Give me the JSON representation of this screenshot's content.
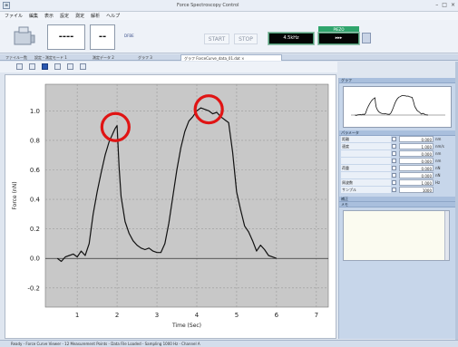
{
  "window": {
    "title": "Force Spectroscopy Control",
    "controls": [
      "–",
      "□",
      "×"
    ]
  },
  "menu": [
    "ファイル",
    "編集",
    "表示",
    "設定",
    "測定",
    "解析",
    "ヘルプ"
  ],
  "toolbar": {
    "field1": "----",
    "field2": "--",
    "small_label": "DFBE",
    "start_label": "START",
    "stop_label": "STOP",
    "dark1_label": "4.5kHz",
    "dark2_label": "▸▸▸",
    "green_label": "PIEZO"
  },
  "tabs": [
    {
      "label": "ファイル一覧"
    },
    {
      "label": "設定・測定モード 1"
    },
    {
      "label": "測定データ 2"
    },
    {
      "label": "グラフ 3"
    },
    {
      "label": "グラフ ForceCurve_data_01.dat ×"
    }
  ],
  "chart_data": {
    "type": "line",
    "title": "",
    "xlabel": "Time (Sec)",
    "ylabel": "Force (nN)",
    "xlim": [
      0.2,
      7.3
    ],
    "ylim": [
      -0.33,
      1.18
    ],
    "xticks": [
      1,
      2,
      3,
      4,
      5,
      6,
      7
    ],
    "yticks": [
      -0.2,
      0.0,
      0.2,
      0.4,
      0.6,
      0.8,
      1.0
    ],
    "xtick_labels": [
      "1",
      "2",
      "3",
      "4",
      "5",
      "6",
      "7"
    ],
    "ytick_labels": [
      "-0.2",
      "0.0",
      "0.2",
      "0.4",
      "0.6",
      "0.8",
      "1.0"
    ],
    "grid": true,
    "series": [
      {
        "x": [
          0.5,
          0.6,
          0.7,
          0.8,
          0.9,
          1.0,
          1.1,
          1.2,
          1.3,
          1.4,
          1.5,
          1.6,
          1.7,
          1.8,
          1.9,
          1.95,
          2.0,
          2.05,
          2.1,
          2.2,
          2.3,
          2.4,
          2.5,
          2.6,
          2.7,
          2.8,
          2.9,
          3.0,
          3.1,
          3.2,
          3.3,
          3.4,
          3.5,
          3.6,
          3.7,
          3.8,
          3.9,
          4.0,
          4.1,
          4.2,
          4.3,
          4.4,
          4.5,
          4.6,
          4.7,
          4.8,
          4.9,
          5.0,
          5.1,
          5.2,
          5.3,
          5.4,
          5.5,
          5.6,
          5.7,
          5.8,
          5.9,
          6.0
        ],
        "y": [
          0.0,
          -0.02,
          0.01,
          0.02,
          0.03,
          0.01,
          0.05,
          0.02,
          0.1,
          0.3,
          0.45,
          0.58,
          0.7,
          0.79,
          0.85,
          0.88,
          0.9,
          0.62,
          0.42,
          0.25,
          0.17,
          0.12,
          0.09,
          0.07,
          0.06,
          0.07,
          0.05,
          0.04,
          0.04,
          0.1,
          0.24,
          0.42,
          0.6,
          0.75,
          0.86,
          0.93,
          0.96,
          1.0,
          1.02,
          1.01,
          1.0,
          0.98,
          0.99,
          0.96,
          0.94,
          0.92,
          0.72,
          0.45,
          0.33,
          0.22,
          0.18,
          0.12,
          0.05,
          0.09,
          0.06,
          0.02,
          0.01,
          0.0
        ]
      }
    ],
    "annotations": [
      {
        "type": "circle",
        "x": 1.96,
        "y": 0.89
      },
      {
        "type": "circle",
        "x": 4.3,
        "y": 1.01
      }
    ]
  },
  "panel": {
    "preview_header": "グラフ",
    "params_header": "パラメータ",
    "rows": [
      {
        "label": "距離",
        "value": "0.000",
        "unit": "nm"
      },
      {
        "label": "速度",
        "value": "1.000",
        "unit": "nm/s"
      },
      {
        "label": "",
        "value": "0.000",
        "unit": "nm"
      },
      {
        "label": "",
        "value": "0.000",
        "unit": "nm"
      },
      {
        "label": "荷重",
        "value": "0.000",
        "unit": "nN"
      },
      {
        "label": "",
        "value": "0.000",
        "unit": "nN"
      },
      {
        "label": "周波数",
        "value": "1.000",
        "unit": "Hz"
      },
      {
        "label": "サンプル",
        "value": "1000",
        "unit": ""
      }
    ],
    "section3_header": "補正",
    "section4_header": "メモ"
  },
  "status": "Ready - Force Curve Viewer - 12 Measurement Points - Data File Loaded - Sampling 1000 Hz - Channel A"
}
